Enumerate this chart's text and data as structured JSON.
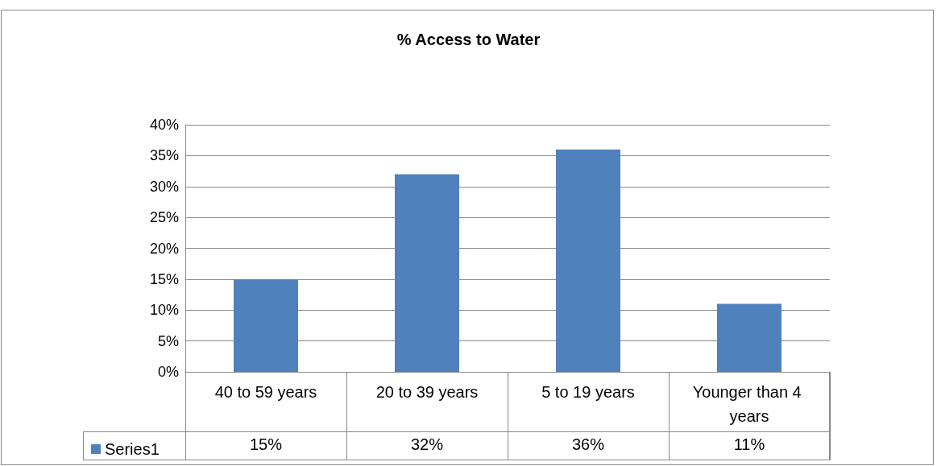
{
  "chart_data": {
    "type": "bar",
    "title": "% Access to Water",
    "categories": [
      "40 to 59 years",
      "20 to 39 years",
      "5 to 19 years",
      "Younger than 4 years"
    ],
    "series": [
      {
        "name": "Series1",
        "color": "#4f81bd",
        "values": [
          15,
          32,
          36,
          11
        ],
        "value_labels": [
          "15%",
          "32%",
          "36%",
          "11%"
        ]
      }
    ],
    "ylim": [
      0,
      40
    ],
    "yticks": [
      {
        "value": 0,
        "label": "0%"
      },
      {
        "value": 5,
        "label": "5%"
      },
      {
        "value": 10,
        "label": "10%"
      },
      {
        "value": 15,
        "label": "15%"
      },
      {
        "value": 20,
        "label": "20%"
      },
      {
        "value": 25,
        "label": "25%"
      },
      {
        "value": 30,
        "label": "30%"
      },
      {
        "value": 35,
        "label": "35%"
      },
      {
        "value": 40,
        "label": "40%"
      }
    ],
    "grid": "y",
    "legend": "bottom left"
  }
}
